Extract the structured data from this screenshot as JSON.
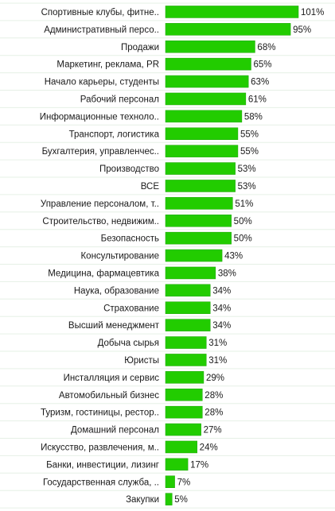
{
  "chart_data": {
    "type": "bar",
    "orientation": "horizontal",
    "categories": [
      "Спортивные клубы, фитне..",
      "Административный персо..",
      "Продажи",
      "Маркетинг, реклама, PR",
      "Начало карьеры, студенты",
      "Рабочий персонал",
      "Информационные техноло..",
      "Транспорт, логистика",
      "Бухгалтерия, управленчес..",
      "Производство",
      "ВСЕ",
      "Управление персоналом, т..",
      "Строительство, недвижим..",
      "Безопасность",
      "Консультирование",
      "Медицина, фармацевтика",
      "Наука, образование",
      "Страхование",
      "Высший менеджмент",
      "Добыча сырья",
      "Юристы",
      "Инсталляция и сервис",
      "Автомобильный бизнес",
      "Туризм, гостиницы, рестор..",
      "Домашний персонал",
      "Искусство, развлечения, м..",
      "Банки, инвестиции, лизинг",
      "Государственная служба, ..",
      "Закупки"
    ],
    "values": [
      101,
      95,
      68,
      65,
      63,
      61,
      58,
      55,
      55,
      53,
      53,
      51,
      50,
      50,
      43,
      38,
      34,
      34,
      34,
      31,
      31,
      29,
      28,
      28,
      27,
      24,
      17,
      7,
      5
    ],
    "value_labels": [
      "101%",
      "95%",
      "68%",
      "65%",
      "63%",
      "61%",
      "58%",
      "55%",
      "55%",
      "53%",
      "53%",
      "51%",
      "50%",
      "50%",
      "43%",
      "38%",
      "34%",
      "34%",
      "34%",
      "31%",
      "31%",
      "29%",
      "28%",
      "28%",
      "27%",
      "24%",
      "17%",
      "7%",
      "5%"
    ],
    "xlim": [
      0,
      101
    ],
    "colors": {
      "bar": "#22cc00",
      "bar_edge": "#1aa300"
    }
  }
}
